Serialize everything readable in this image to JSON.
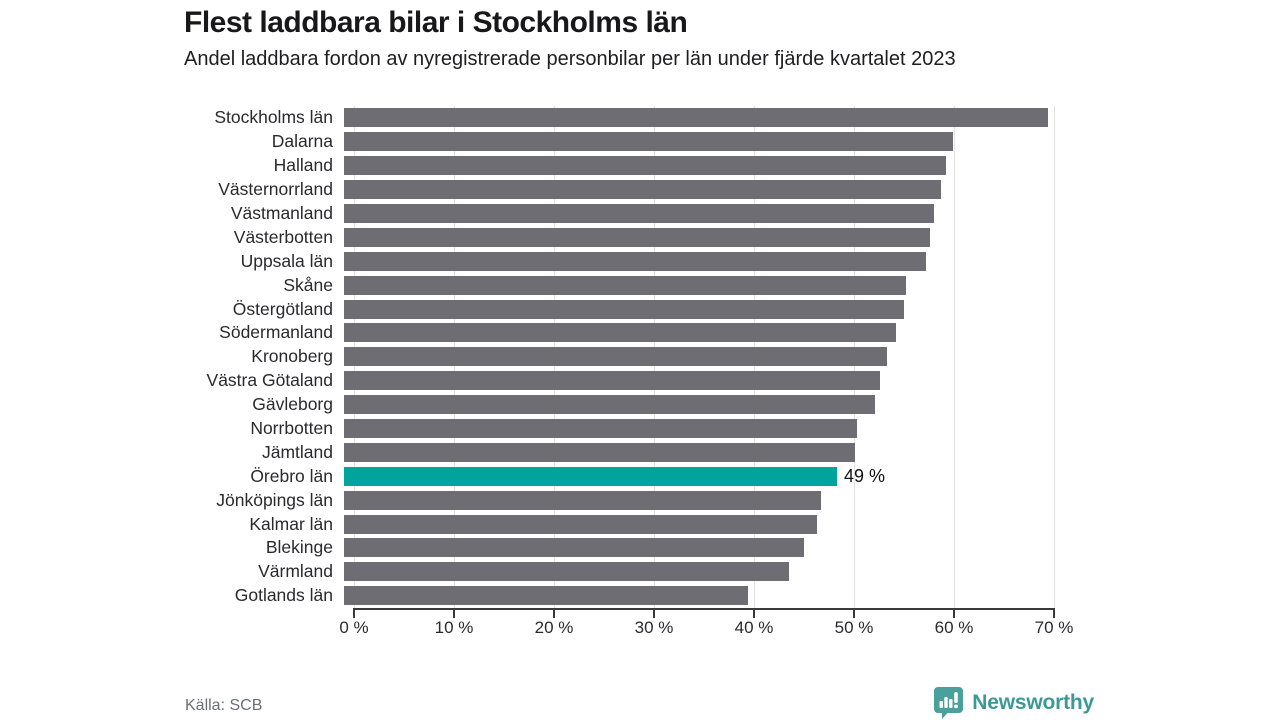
{
  "title": "Flest laddbara bilar i Stockholms län",
  "subtitle": "Andel laddbara fordon av nyregistrerade personbilar per län under fjärde kvartalet 2023",
  "source": "Källa: SCB",
  "branding": {
    "name": "Newsworthy",
    "icon": "newsworthy-logo",
    "color": "#3b9a96"
  },
  "colors": {
    "bar": "#6d6d73",
    "highlight": "#00a49c",
    "gridline": "#e2e2e5",
    "axis": "#3a3a3c",
    "title_text": "#18181a",
    "muted_text": "#6b6f7a"
  },
  "chart_data": {
    "type": "bar",
    "orientation": "horizontal",
    "title": "Flest laddbara bilar i Stockholms län",
    "subtitle": "Andel laddbara fordon av nyregistrerade personbilar per län under fjärde kvartalet 2023",
    "xlabel": "",
    "ylabel": "",
    "xlim": [
      0,
      70
    ],
    "grid": true,
    "x_ticks": [
      "0 %",
      "10 %",
      "20 %",
      "30 %",
      "40 %",
      "50 %",
      "60 %",
      "70 %"
    ],
    "x_tick_values": [
      0,
      10,
      20,
      30,
      40,
      50,
      60,
      70
    ],
    "categories": [
      "Stockholms län",
      "Dalarna",
      "Halland",
      "Västernorrland",
      "Västmanland",
      "Västerbotten",
      "Uppsala län",
      "Skåne",
      "Östergötland",
      "Södermanland",
      "Kronoberg",
      "Västra Götaland",
      "Gävleborg",
      "Norrbotten",
      "Jämtland",
      "Örebro län",
      "Jönköpings län",
      "Kalmar län",
      "Blekinge",
      "Värmland",
      "Gotlands län"
    ],
    "values": [
      70.4,
      60.9,
      60.2,
      59.7,
      59.0,
      58.6,
      58.2,
      56.2,
      56.0,
      55.2,
      54.3,
      53.6,
      53.1,
      51.3,
      51.1,
      49.3,
      47.7,
      47.3,
      46.0,
      44.5,
      40.4
    ],
    "highlight_index": 15,
    "highlight_label": "49 %"
  }
}
